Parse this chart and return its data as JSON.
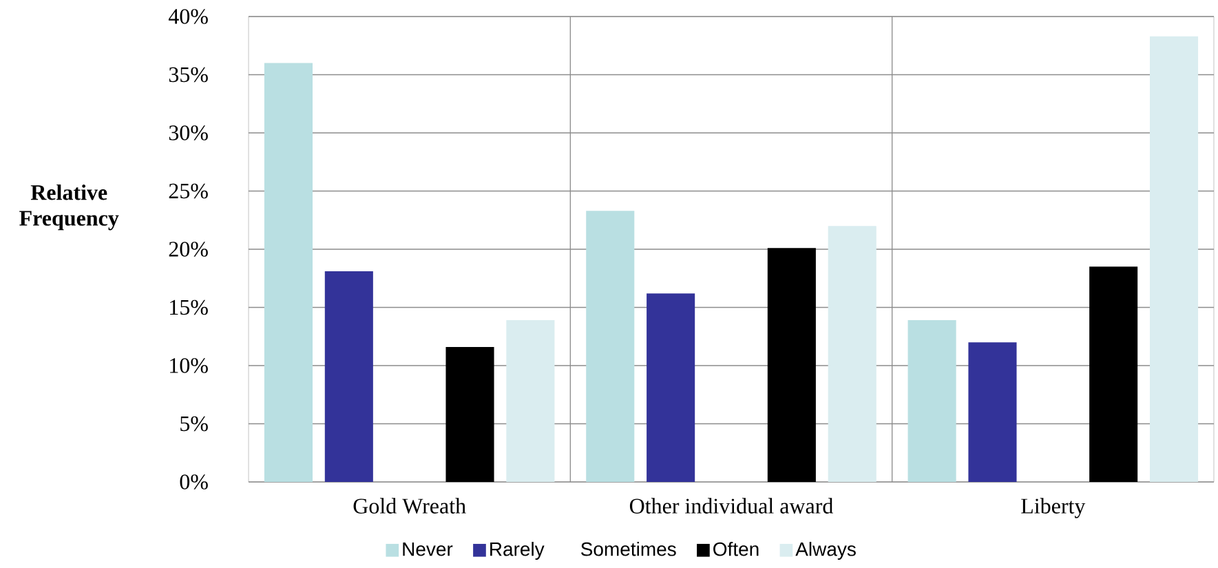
{
  "chart_data": {
    "type": "bar",
    "ylabel": "Relative Frequency",
    "categories": [
      "Gold Wreath",
      "Other individual award",
      "Liberty"
    ],
    "series": [
      {
        "name": "Never",
        "color": "#b9dfe2",
        "values": [
          36.0,
          23.3,
          13.9
        ]
      },
      {
        "name": "Rarely",
        "color": "#333399",
        "values": [
          18.1,
          16.2,
          12.0
        ]
      },
      {
        "name": "Sometimes",
        "values": [
          null,
          null,
          null
        ]
      },
      {
        "name": "Often",
        "color": "#000000",
        "values": [
          11.6,
          20.1,
          18.5
        ]
      },
      {
        "name": "Always",
        "color": "#daedf0",
        "values": [
          13.9,
          22.0,
          38.3
        ]
      }
    ],
    "ylim": [
      0,
      40
    ],
    "yticks": [
      {
        "value": 0,
        "label": "0%"
      },
      {
        "value": 5,
        "label": "5%"
      },
      {
        "value": 10,
        "label": "10%"
      },
      {
        "value": 15,
        "label": "15%"
      },
      {
        "value": 20,
        "label": "20%"
      },
      {
        "value": 25,
        "label": "25%"
      },
      {
        "value": 30,
        "label": "30%"
      },
      {
        "value": 35,
        "label": "35%"
      },
      {
        "value": 40,
        "label": "40%"
      }
    ],
    "grid": true,
    "legend": "bottom"
  }
}
